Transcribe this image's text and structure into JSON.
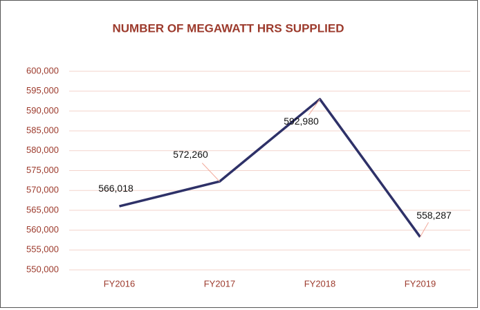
{
  "chart_data": {
    "type": "line",
    "title": "NUMBER OF MEGAWATT HRS SUPPLIED",
    "categories": [
      "FY2016",
      "FY2017",
      "FY2018",
      "FY2019"
    ],
    "values": [
      566018,
      572260,
      592980,
      558287
    ],
    "value_labels": [
      "566,018",
      "572,260",
      "592,980",
      "558,287"
    ],
    "color": "#2e3168",
    "ylim": [
      550000,
      600000
    ],
    "yticks": [
      {
        "value": 550000,
        "label": "550,000"
      },
      {
        "value": 555000,
        "label": "555,000"
      },
      {
        "value": 560000,
        "label": "560,000"
      },
      {
        "value": 565000,
        "label": "565,000"
      },
      {
        "value": 570000,
        "label": "570,000"
      },
      {
        "value": 575000,
        "label": "575,000"
      },
      {
        "value": 580000,
        "label": "580,000"
      },
      {
        "value": 585000,
        "label": "585,000"
      },
      {
        "value": 590000,
        "label": "590,000"
      },
      {
        "value": 595000,
        "label": "595,000"
      },
      {
        "value": 600000,
        "label": "600,000"
      }
    ],
    "grid": true
  }
}
